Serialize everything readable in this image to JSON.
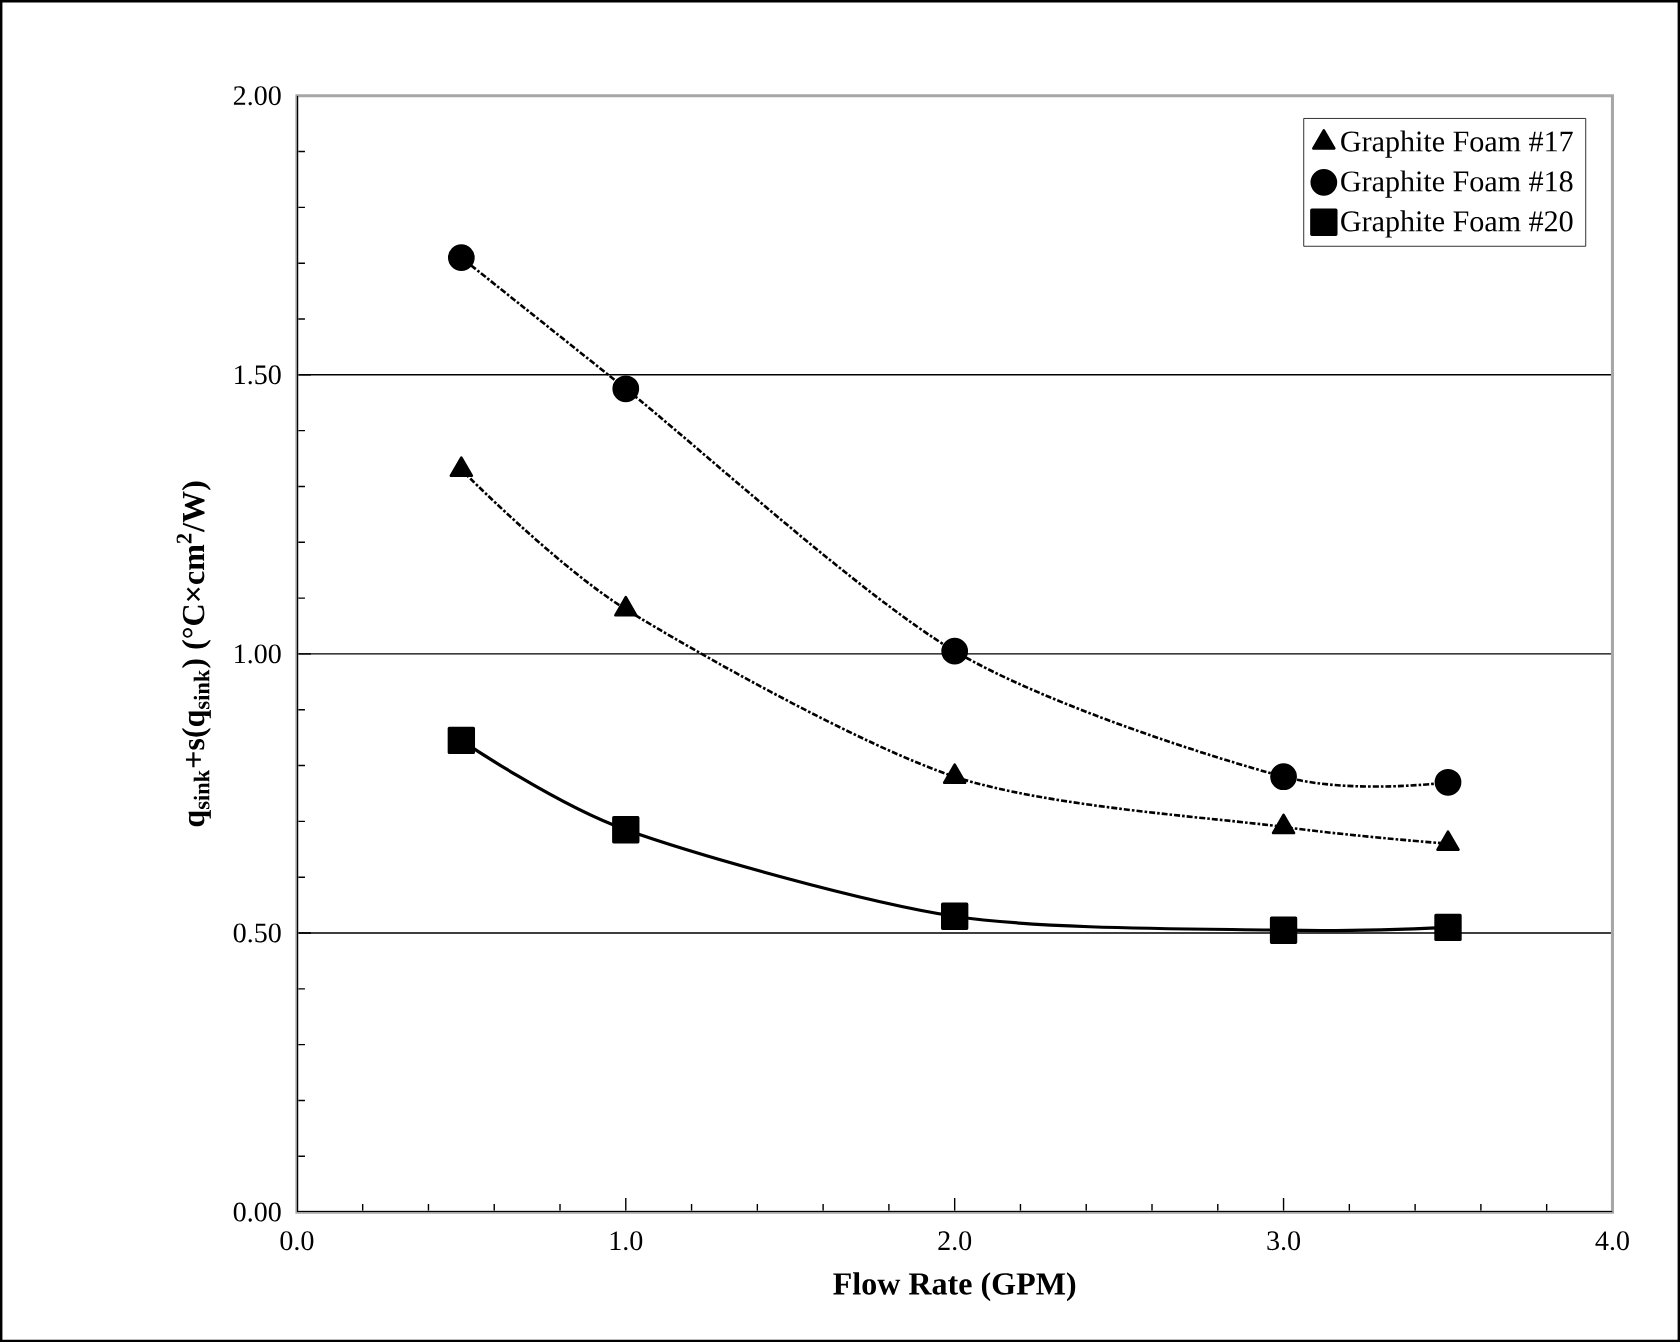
{
  "chart_data": {
    "type": "line",
    "xlabel": "Flow Rate (GPM)",
    "ylabel": "q$_{sink}$+s(q$_{sink}$) (°C×cm$^{2}$/W)",
    "x": [
      0.5,
      1.0,
      2.0,
      3.0,
      3.5
    ],
    "series": [
      {
        "name": "Graphite Foam #17",
        "color": "#000000",
        "marker": "triangle",
        "line_style": "dotted",
        "values": [
          1.33,
          1.08,
          0.78,
          0.69,
          0.66
        ]
      },
      {
        "name": "Graphite Foam #18",
        "color": "#000000",
        "marker": "circle",
        "line_style": "dotted",
        "values": [
          1.71,
          1.475,
          1.005,
          0.78,
          0.77
        ]
      },
      {
        "name": "Graphite Foam #20",
        "color": "#000000",
        "marker": "square",
        "line_style": "solid",
        "values": [
          0.845,
          0.685,
          0.53,
          0.505,
          0.51
        ]
      }
    ],
    "xlim": [
      0,
      4
    ],
    "ylim": [
      0,
      2
    ],
    "xticks": [
      {
        "value": 0,
        "label": "0.0"
      },
      {
        "value": 1,
        "label": "1.0"
      },
      {
        "value": 2,
        "label": "2.0"
      },
      {
        "value": 3,
        "label": "3.0"
      },
      {
        "value": 4,
        "label": "4.0"
      }
    ],
    "yticks": [
      {
        "value": 0,
        "label": "0.00"
      },
      {
        "value": 0.5,
        "label": "0.50"
      },
      {
        "value": 1,
        "label": "1.00"
      },
      {
        "value": 1.5,
        "label": "1.50"
      },
      {
        "value": 2,
        "label": "2.00"
      }
    ],
    "grid": "y",
    "legend": "top right"
  }
}
